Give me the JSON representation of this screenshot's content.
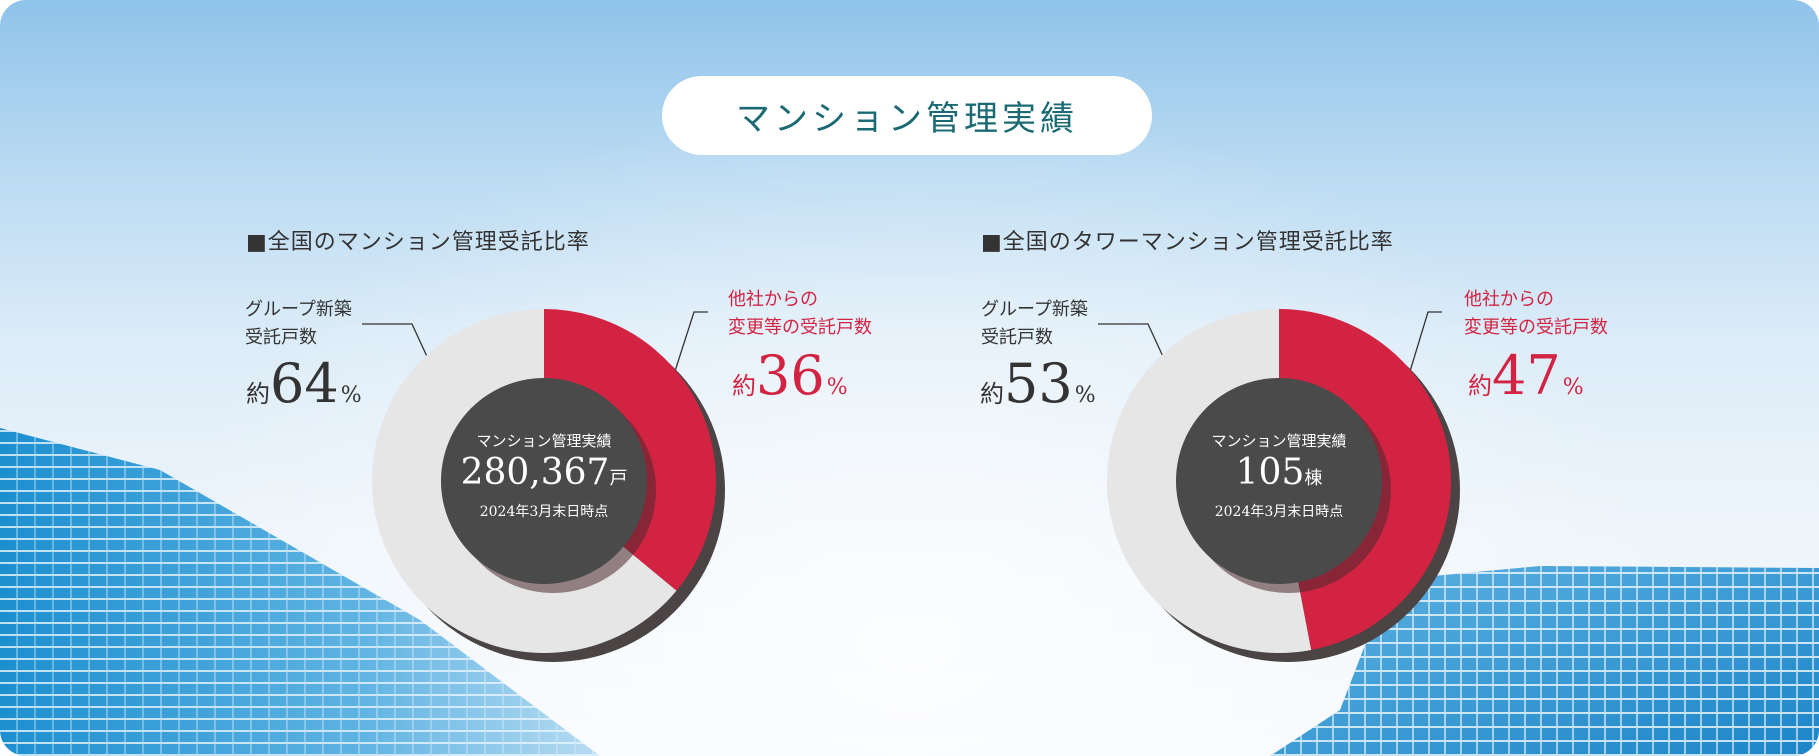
{
  "page_title": "マンション管理実績",
  "chart_data": [
    {
      "type": "pie",
      "title": "■全国のマンション管理受託比率",
      "series": [
        {
          "name": "グループ新築受託戸数",
          "prefix": "約",
          "value": 64,
          "unit": "%",
          "color": "#e6e6e6"
        },
        {
          "name": "他社からの変更等の受託戸数",
          "prefix": "約",
          "value": 36,
          "unit": "%",
          "color": "#d32343"
        }
      ],
      "center": {
        "caption": "マンション管理実績",
        "value": "280,367",
        "unit": "戸",
        "date": "2024年3月末日時点"
      }
    },
    {
      "type": "pie",
      "title": "■全国のタワーマンション管理受託比率",
      "series": [
        {
          "name": "グループ新築受託戸数",
          "prefix": "約",
          "value": 53,
          "unit": "%",
          "color": "#e6e6e6"
        },
        {
          "name": "他社からの変更等の受託戸数",
          "prefix": "約",
          "value": 47,
          "unit": "%",
          "color": "#d32343"
        }
      ],
      "center": {
        "caption": "マンション管理実績",
        "value": "105",
        "unit": "棟",
        "date": "2024年3月末日時点"
      }
    }
  ],
  "labels": {
    "left_gray_lines": [
      "グループ新築",
      "受託戸数"
    ],
    "left_red_lines": [
      "他社からの",
      "変更等の受託戸数"
    ],
    "right_gray_lines": [
      "グループ新築",
      "受託戸数"
    ],
    "right_red_lines": [
      "他社からの",
      "変更等の受託戸数"
    ]
  },
  "colors": {
    "accent_red": "#d32343",
    "center_dark": "#4a4a4a",
    "shadow": "#4a4445",
    "title_teal": "#1b6a73"
  }
}
